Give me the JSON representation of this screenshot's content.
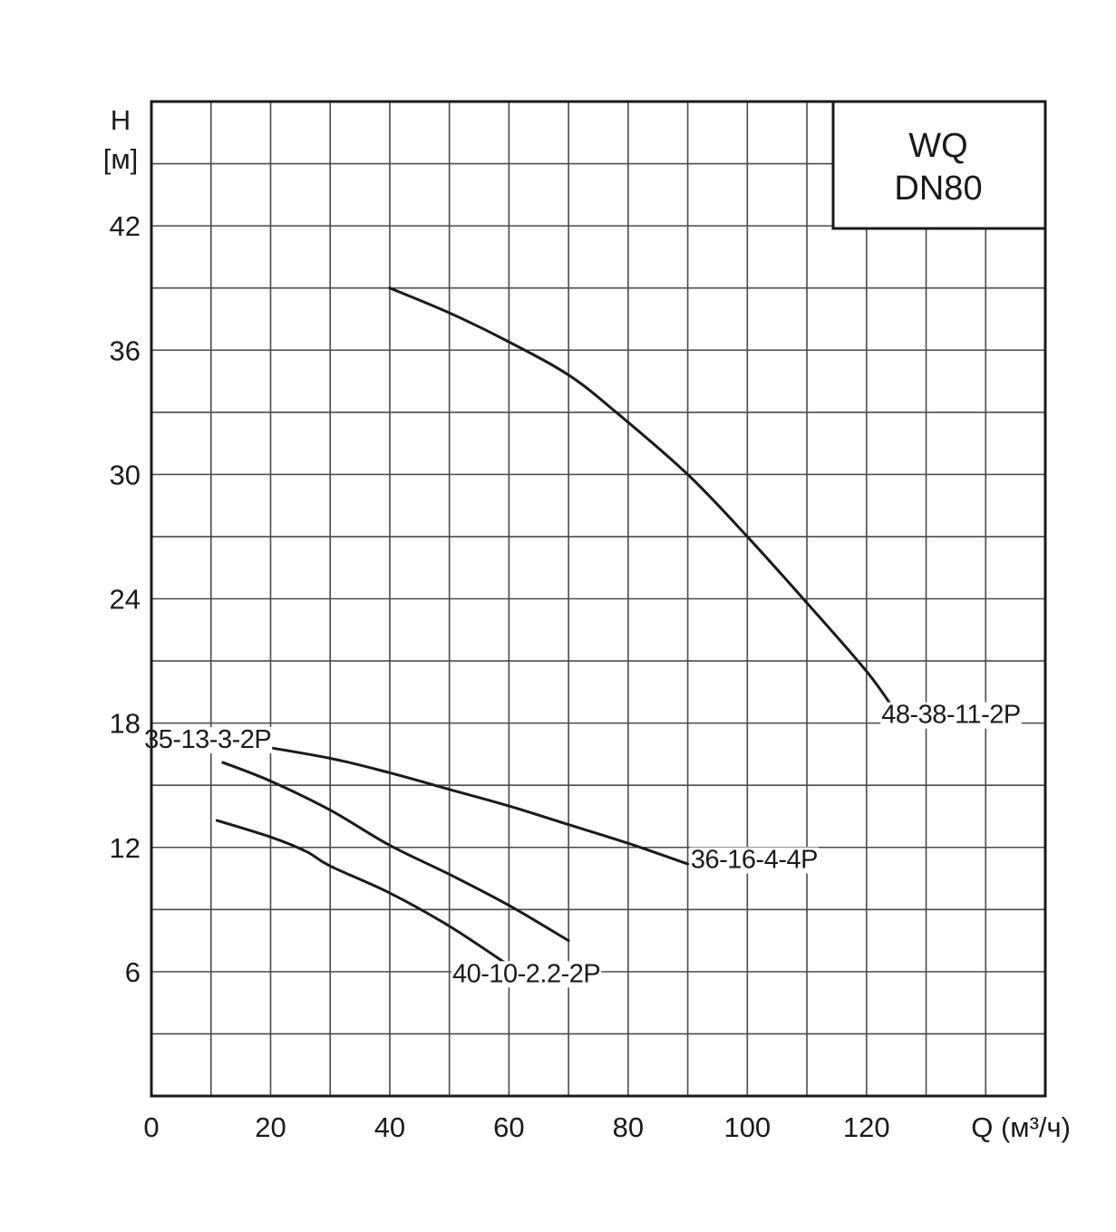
{
  "chart_data": {
    "type": "line",
    "title": [
      "WQ",
      "DN80"
    ],
    "xlabel": "Q (м³/ч)",
    "ylabel": [
      "H",
      "[м]"
    ],
    "xlim": [
      0,
      150
    ],
    "ylim": [
      0,
      48
    ],
    "x_grid_step": 10,
    "y_grid_step": 3,
    "x_ticks": [
      0,
      20,
      40,
      60,
      80,
      100,
      120
    ],
    "y_ticks": [
      6,
      12,
      18,
      24,
      30,
      36,
      42
    ],
    "grid": true,
    "series": [
      {
        "name": "48-38-11-2P",
        "x": [
          40,
          50,
          60,
          70,
          78,
          90,
          100,
          110,
          120,
          125
        ],
        "y": [
          39.0,
          37.8,
          36.4,
          34.8,
          33.0,
          30.0,
          27.0,
          23.8,
          20.5,
          18.5
        ]
      },
      {
        "name": "36-16-4-4P",
        "x": [
          16,
          30,
          40,
          50,
          60,
          70,
          80,
          90
        ],
        "y": [
          17.0,
          16.3,
          15.6,
          14.8,
          14.0,
          13.1,
          12.2,
          11.2
        ]
      },
      {
        "name": "35-13-3-2P",
        "x": [
          12,
          20,
          30,
          40,
          50,
          60,
          70
        ],
        "y": [
          16.1,
          15.2,
          13.8,
          12.1,
          10.7,
          9.2,
          7.5
        ]
      },
      {
        "name": "40-10-2.2-2P",
        "x": [
          11,
          20,
          26,
          30,
          40,
          50,
          60
        ],
        "y": [
          13.3,
          12.5,
          11.8,
          11.1,
          9.8,
          8.2,
          6.3
        ]
      }
    ],
    "labels": [
      {
        "text": "48-38-11-2P",
        "x": 122.5,
        "y": 18.0
      },
      {
        "text": "36-16-4-4P",
        "x": 90.5,
        "y": 11.0
      },
      {
        "text": "35-13-3-2P",
        "x": -1.2,
        "y": 16.8
      },
      {
        "text": "40-10-2.2-2P",
        "x": 50.5,
        "y": 5.5
      }
    ]
  }
}
